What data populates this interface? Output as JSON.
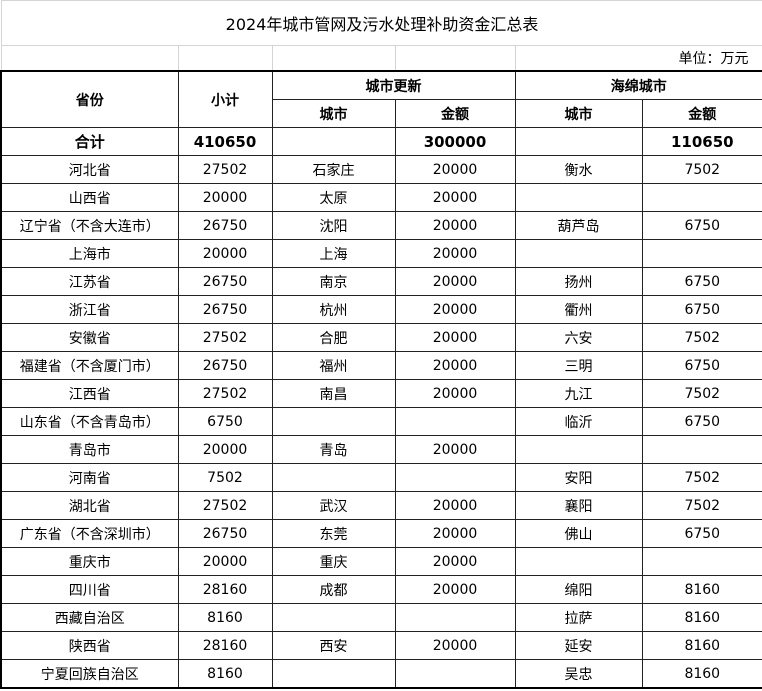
{
  "title": "2024年城市管网及污水处理补助资金汇总表",
  "unit": "单位：万元",
  "headers": {
    "province": "省份",
    "subtotal": "小计",
    "urban_renewal": "城市更新",
    "sponge_city": "海绵城市",
    "city": "城市",
    "amount": "金额"
  },
  "total": {
    "label": "合计",
    "subtotal": "410650",
    "renewal_amount": "300000",
    "sponge_amount": "110650"
  },
  "rows": [
    {
      "province": "河北省",
      "subtotal": "27502",
      "r_city": "石家庄",
      "r_amt": "20000",
      "s_city": "衡水",
      "s_amt": "7502"
    },
    {
      "province": "山西省",
      "subtotal": "20000",
      "r_city": "太原",
      "r_amt": "20000",
      "s_city": "",
      "s_amt": ""
    },
    {
      "province": "辽宁省（不含大连市）",
      "subtotal": "26750",
      "r_city": "沈阳",
      "r_amt": "20000",
      "s_city": "葫芦岛",
      "s_amt": "6750"
    },
    {
      "province": "上海市",
      "subtotal": "20000",
      "r_city": "上海",
      "r_amt": "20000",
      "s_city": "",
      "s_amt": ""
    },
    {
      "province": "江苏省",
      "subtotal": "26750",
      "r_city": "南京",
      "r_amt": "20000",
      "s_city": "扬州",
      "s_amt": "6750"
    },
    {
      "province": "浙江省",
      "subtotal": "26750",
      "r_city": "杭州",
      "r_amt": "20000",
      "s_city": "衢州",
      "s_amt": "6750"
    },
    {
      "province": "安徽省",
      "subtotal": "27502",
      "r_city": "合肥",
      "r_amt": "20000",
      "s_city": "六安",
      "s_amt": "7502"
    },
    {
      "province": "福建省（不含厦门市）",
      "subtotal": "26750",
      "r_city": "福州",
      "r_amt": "20000",
      "s_city": "三明",
      "s_amt": "6750"
    },
    {
      "province": "江西省",
      "subtotal": "27502",
      "r_city": "南昌",
      "r_amt": "20000",
      "s_city": "九江",
      "s_amt": "7502"
    },
    {
      "province": "山东省（不含青岛市）",
      "subtotal": "6750",
      "r_city": "",
      "r_amt": "",
      "s_city": "临沂",
      "s_amt": "6750"
    },
    {
      "province": "青岛市",
      "subtotal": "20000",
      "r_city": "青岛",
      "r_amt": "20000",
      "s_city": "",
      "s_amt": ""
    },
    {
      "province": "河南省",
      "subtotal": "7502",
      "r_city": "",
      "r_amt": "",
      "s_city": "安阳",
      "s_amt": "7502"
    },
    {
      "province": "湖北省",
      "subtotal": "27502",
      "r_city": "武汉",
      "r_amt": "20000",
      "s_city": "襄阳",
      "s_amt": "7502"
    },
    {
      "province": "广东省（不含深圳市）",
      "subtotal": "26750",
      "r_city": "东莞",
      "r_amt": "20000",
      "s_city": "佛山",
      "s_amt": "6750"
    },
    {
      "province": "重庆市",
      "subtotal": "20000",
      "r_city": "重庆",
      "r_amt": "20000",
      "s_city": "",
      "s_amt": ""
    },
    {
      "province": "四川省",
      "subtotal": "28160",
      "r_city": "成都",
      "r_amt": "20000",
      "s_city": "绵阳",
      "s_amt": "8160"
    },
    {
      "province": "西藏自治区",
      "subtotal": "8160",
      "r_city": "",
      "r_amt": "",
      "s_city": "拉萨",
      "s_amt": "8160"
    },
    {
      "province": "陕西省",
      "subtotal": "28160",
      "r_city": "西安",
      "r_amt": "20000",
      "s_city": "延安",
      "s_amt": "8160"
    },
    {
      "province": "宁夏回族自治区",
      "subtotal": "8160",
      "r_city": "",
      "r_amt": "",
      "s_city": "吴忠",
      "s_amt": "8160"
    }
  ]
}
